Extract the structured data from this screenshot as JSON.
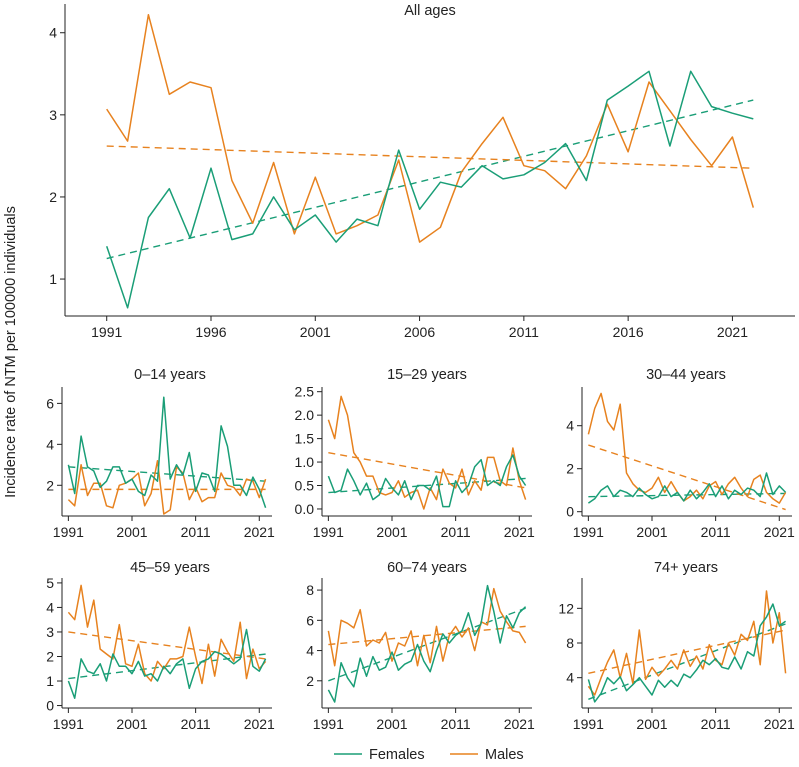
{
  "figure": {
    "ylabel": "Incidence rate of NTM per 100000 individuals",
    "legend": [
      {
        "name": "Females",
        "color": "#1a9e77"
      },
      {
        "name": "Males",
        "color": "#e7821f"
      }
    ],
    "colors": {
      "females": "#1a9e77",
      "males": "#e7821f",
      "axis": "#222222"
    }
  },
  "chart_data": [
    {
      "type": "line",
      "title": "All ages",
      "x": [
        1991,
        1992,
        1993,
        1994,
        1995,
        1996,
        1997,
        1998,
        1999,
        2000,
        2001,
        2002,
        2003,
        2004,
        2005,
        2006,
        2007,
        2008,
        2009,
        2010,
        2011,
        2012,
        2013,
        2014,
        2015,
        2016,
        2017,
        2018,
        2019,
        2020,
        2021,
        2022
      ],
      "series": [
        {
          "name": "Females",
          "values": [
            1.4,
            0.65,
            1.75,
            2.1,
            1.5,
            2.35,
            1.48,
            1.55,
            2.0,
            1.6,
            1.78,
            1.45,
            1.73,
            1.65,
            2.57,
            1.85,
            2.18,
            2.12,
            2.38,
            2.22,
            2.27,
            2.42,
            2.65,
            2.2,
            3.18,
            3.35,
            3.53,
            2.62,
            3.53,
            3.1,
            3.02,
            2.95
          ]
        },
        {
          "name": "Males",
          "values": [
            3.07,
            2.68,
            4.22,
            3.25,
            3.4,
            3.33,
            2.2,
            1.68,
            2.42,
            1.55,
            2.24,
            1.55,
            1.65,
            1.78,
            2.45,
            1.45,
            1.63,
            2.3,
            2.65,
            2.97,
            2.38,
            2.32,
            2.1,
            2.5,
            3.13,
            2.55,
            3.4,
            3.05,
            2.7,
            2.38,
            2.73,
            1.87
          ]
        }
      ],
      "trend": [
        {
          "name": "Females",
          "start": [
            1991,
            1.25
          ],
          "end": [
            2022,
            3.18
          ]
        },
        {
          "name": "Males",
          "start": [
            1991,
            2.62
          ],
          "end": [
            2022,
            2.35
          ]
        }
      ],
      "xticks": [
        1991,
        1996,
        2001,
        2006,
        2011,
        2016,
        2021
      ],
      "yticks": [
        1,
        2,
        3,
        4
      ],
      "xlim": [
        1989,
        2024
      ],
      "ylim": [
        0.55,
        4.35
      ]
    },
    {
      "type": "line",
      "title": "0–14 years",
      "x": [
        1991,
        1992,
        1993,
        1994,
        1995,
        1996,
        1997,
        1998,
        1999,
        2000,
        2001,
        2002,
        2003,
        2004,
        2005,
        2006,
        2007,
        2008,
        2009,
        2010,
        2011,
        2012,
        2013,
        2014,
        2015,
        2016,
        2017,
        2018,
        2019,
        2020,
        2021,
        2022
      ],
      "series": [
        {
          "name": "Females",
          "values": [
            3.0,
            1.6,
            4.4,
            2.9,
            2.7,
            1.9,
            2.2,
            2.9,
            2.9,
            2.1,
            2.3,
            1.7,
            1.5,
            2.5,
            2.2,
            6.3,
            2.3,
            3.0,
            2.5,
            3.6,
            1.7,
            2.6,
            2.5,
            1.7,
            4.9,
            3.9,
            2.0,
            2.0,
            1.5,
            2.4,
            1.8,
            0.9
          ]
        },
        {
          "name": "Males",
          "values": [
            1.3,
            1.0,
            3.0,
            1.5,
            2.1,
            2.1,
            1.0,
            0.9,
            2.0,
            2.1,
            2.3,
            2.6,
            1.0,
            1.6,
            3.2,
            0.6,
            0.8,
            2.9,
            2.6,
            1.3,
            1.9,
            1.2,
            1.4,
            1.4,
            2.6,
            2.0,
            1.9,
            1.5,
            2.3,
            2.2,
            1.4,
            2.3
          ]
        }
      ],
      "trend": [
        {
          "name": "Females",
          "start": [
            1991,
            2.9
          ],
          "end": [
            2022,
            2.2
          ]
        },
        {
          "name": "Males",
          "start": [
            1991,
            1.8
          ],
          "end": [
            2022,
            1.8
          ]
        }
      ],
      "xticks": [
        1991,
        2001,
        2011,
        2021
      ],
      "yticks": [
        2,
        4,
        6
      ],
      "xlim": [
        1990,
        2023
      ],
      "ylim": [
        0.5,
        6.8
      ]
    },
    {
      "type": "line",
      "title": "15–29 years",
      "x": [
        1991,
        1992,
        1993,
        1994,
        1995,
        1996,
        1997,
        1998,
        1999,
        2000,
        2001,
        2002,
        2003,
        2004,
        2005,
        2006,
        2007,
        2008,
        2009,
        2010,
        2011,
        2012,
        2013,
        2014,
        2015,
        2016,
        2017,
        2018,
        2019,
        2020,
        2021,
        2022
      ],
      "series": [
        {
          "name": "Females",
          "values": [
            0.7,
            0.35,
            0.4,
            0.85,
            0.6,
            0.3,
            0.55,
            0.2,
            0.3,
            0.65,
            0.45,
            0.3,
            0.6,
            0.2,
            0.5,
            0.5,
            0.4,
            0.7,
            0.05,
            0.05,
            0.6,
            0.35,
            0.5,
            0.9,
            1.05,
            0.5,
            0.6,
            0.5,
            0.9,
            1.15,
            0.7,
            0.5
          ]
        },
        {
          "name": "Males",
          "values": [
            1.9,
            1.5,
            2.4,
            2.0,
            1.2,
            1.0,
            0.7,
            0.7,
            0.35,
            0.3,
            0.35,
            0.6,
            0.25,
            0.35,
            0.4,
            0.0,
            0.45,
            0.2,
            0.85,
            0.55,
            0.45,
            0.85,
            0.3,
            0.6,
            0.4,
            1.1,
            1.1,
            0.6,
            0.5,
            1.3,
            0.6,
            0.2
          ]
        }
      ],
      "trend": [
        {
          "name": "Females",
          "start": [
            1991,
            0.35
          ],
          "end": [
            2022,
            0.65
          ]
        },
        {
          "name": "Males",
          "start": [
            1991,
            1.2
          ],
          "end": [
            2022,
            0.45
          ]
        }
      ],
      "xticks": [
        1991,
        2001,
        2011,
        2021
      ],
      "yticks": [
        0.0,
        0.5,
        1.0,
        1.5,
        2.0,
        2.5
      ],
      "xlim": [
        1990,
        2023
      ],
      "ylim": [
        -0.15,
        2.6
      ]
    },
    {
      "type": "line",
      "title": "30–44 years",
      "x": [
        1991,
        1992,
        1993,
        1994,
        1995,
        1996,
        1997,
        1998,
        1999,
        2000,
        2001,
        2002,
        2003,
        2004,
        2005,
        2006,
        2007,
        2008,
        2009,
        2010,
        2011,
        2012,
        2013,
        2014,
        2015,
        2016,
        2017,
        2018,
        2019,
        2020,
        2021,
        2022
      ],
      "series": [
        {
          "name": "Females",
          "values": [
            0.4,
            0.6,
            1.0,
            1.2,
            0.7,
            1.0,
            0.9,
            0.7,
            1.1,
            0.8,
            0.6,
            0.7,
            1.2,
            0.7,
            0.9,
            0.5,
            1.0,
            0.6,
            0.9,
            1.3,
            0.7,
            1.2,
            0.6,
            1.0,
            0.8,
            1.1,
            1.0,
            0.7,
            1.8,
            0.8,
            1.2,
            0.9
          ]
        },
        {
          "name": "Males",
          "values": [
            3.6,
            4.8,
            5.5,
            4.2,
            3.8,
            5.0,
            1.8,
            1.3,
            1.0,
            0.9,
            1.1,
            1.6,
            0.9,
            1.4,
            0.9,
            0.5,
            0.7,
            1.0,
            0.6,
            1.2,
            1.4,
            0.8,
            1.3,
            1.6,
            1.1,
            0.7,
            1.5,
            1.7,
            0.9,
            0.6,
            0.4,
            0.9
          ]
        }
      ],
      "trend": [
        {
          "name": "Females",
          "start": [
            1991,
            0.7
          ],
          "end": [
            2022,
            0.85
          ]
        },
        {
          "name": "Males",
          "start": [
            1991,
            3.1
          ],
          "end": [
            2022,
            0.1
          ]
        }
      ],
      "xticks": [
        1991,
        2001,
        2011,
        2021
      ],
      "yticks": [
        0,
        2,
        4
      ],
      "xlim": [
        1990,
        2023
      ],
      "ylim": [
        -0.2,
        5.8
      ]
    },
    {
      "type": "line",
      "title": "45–59 years",
      "x": [
        1991,
        1992,
        1993,
        1994,
        1995,
        1996,
        1997,
        1998,
        1999,
        2000,
        2001,
        2002,
        2003,
        2004,
        2005,
        2006,
        2007,
        2008,
        2009,
        2010,
        2011,
        2012,
        2013,
        2014,
        2015,
        2016,
        2017,
        2018,
        2019,
        2020,
        2021,
        2022
      ],
      "series": [
        {
          "name": "Females",
          "values": [
            1.0,
            0.3,
            1.9,
            1.4,
            1.3,
            1.7,
            1.0,
            2.1,
            1.6,
            1.6,
            1.3,
            1.8,
            1.2,
            1.3,
            1.0,
            1.6,
            1.3,
            1.7,
            1.9,
            0.7,
            1.5,
            1.8,
            1.9,
            2.2,
            2.1,
            1.9,
            1.7,
            1.9,
            3.1,
            1.6,
            1.4,
            1.9
          ]
        },
        {
          "name": "Males",
          "values": [
            3.8,
            3.5,
            4.9,
            3.2,
            4.3,
            2.3,
            2.1,
            1.9,
            3.3,
            1.7,
            1.6,
            2.5,
            1.3,
            1.0,
            1.8,
            1.5,
            1.9,
            1.9,
            2.0,
            3.2,
            2.0,
            0.9,
            2.5,
            1.2,
            2.7,
            2.2,
            1.8,
            3.4,
            1.1,
            2.3,
            1.5,
            1.8
          ]
        }
      ],
      "trend": [
        {
          "name": "Females",
          "start": [
            1991,
            1.1
          ],
          "end": [
            2022,
            2.1
          ]
        },
        {
          "name": "Males",
          "start": [
            1991,
            3.0
          ],
          "end": [
            2022,
            1.9
          ]
        }
      ],
      "xticks": [
        1991,
        2001,
        2011,
        2021
      ],
      "yticks": [
        0,
        1,
        2,
        3,
        4,
        5
      ],
      "xlim": [
        1990,
        2023
      ],
      "ylim": [
        -0.1,
        5.2
      ]
    },
    {
      "type": "line",
      "title": "60–74 years",
      "x": [
        1991,
        1992,
        1993,
        1994,
        1995,
        1996,
        1997,
        1998,
        1999,
        2000,
        2001,
        2002,
        2003,
        2004,
        2005,
        2006,
        2007,
        2008,
        2009,
        2010,
        2011,
        2012,
        2013,
        2014,
        2015,
        2016,
        2017,
        2018,
        2019,
        2020,
        2021,
        2022
      ],
      "series": [
        {
          "name": "Females",
          "values": [
            1.4,
            0.6,
            3.2,
            2.2,
            1.6,
            3.5,
            2.3,
            3.6,
            2.7,
            2.9,
            3.9,
            2.7,
            3.1,
            3.3,
            4.4,
            3.3,
            2.6,
            4.0,
            5.1,
            4.5,
            5.0,
            5.3,
            6.5,
            5.0,
            5.8,
            8.3,
            6.6,
            4.5,
            6.3,
            5.5,
            6.5,
            6.9
          ]
        },
        {
          "name": "Males",
          "values": [
            5.3,
            3.0,
            6.0,
            5.8,
            5.5,
            6.7,
            4.3,
            4.7,
            4.5,
            5.2,
            3.3,
            4.5,
            4.3,
            5.3,
            3.0,
            5.0,
            3.2,
            5.6,
            3.3,
            5.0,
            5.6,
            4.9,
            5.5,
            4.0,
            5.9,
            5.7,
            8.1,
            6.6,
            5.9,
            5.3,
            5.2,
            4.5
          ]
        }
      ],
      "trend": [
        {
          "name": "Females",
          "start": [
            1991,
            2.0
          ],
          "end": [
            2022,
            6.8
          ]
        },
        {
          "name": "Males",
          "start": [
            1991,
            4.4
          ],
          "end": [
            2022,
            5.6
          ]
        }
      ],
      "xticks": [
        1991,
        2001,
        2011,
        2021
      ],
      "yticks": [
        2,
        4,
        6,
        8
      ],
      "xlim": [
        1990,
        2023
      ],
      "ylim": [
        0.2,
        8.8
      ]
    },
    {
      "type": "line",
      "title": "74+ years",
      "x": [
        1991,
        1992,
        1993,
        1994,
        1995,
        1996,
        1997,
        1998,
        1999,
        2000,
        2001,
        2002,
        2003,
        2004,
        2005,
        2006,
        2007,
        2008,
        2009,
        2010,
        2011,
        2012,
        2013,
        2014,
        2015,
        2016,
        2017,
        2018,
        2019,
        2020,
        2021,
        2022
      ],
      "series": [
        {
          "name": "Females",
          "values": [
            3.8,
            1.2,
            2.2,
            4.0,
            3.3,
            4.1,
            2.5,
            3.2,
            4.0,
            3.0,
            2.0,
            3.7,
            2.9,
            3.7,
            3.0,
            4.4,
            4.0,
            4.9,
            6.0,
            5.5,
            6.2,
            5.2,
            5.0,
            6.4,
            5.0,
            7.0,
            6.5,
            10.0,
            11.0,
            12.5,
            10.0,
            10.5
          ]
        },
        {
          "name": "Males",
          "values": [
            3.0,
            2.0,
            4.0,
            5.8,
            7.2,
            4.0,
            6.8,
            3.3,
            9.5,
            3.8,
            5.2,
            4.2,
            5.0,
            6.0,
            5.0,
            7.2,
            5.3,
            6.5,
            5.0,
            7.8,
            6.0,
            5.5,
            8.0,
            6.6,
            9.0,
            8.3,
            10.5,
            5.5,
            14.0,
            8.0,
            11.5,
            4.5
          ]
        }
      ],
      "trend": [
        {
          "name": "Females",
          "start": [
            1991,
            1.5
          ],
          "end": [
            2022,
            10.2
          ]
        },
        {
          "name": "Males",
          "start": [
            1991,
            4.5
          ],
          "end": [
            2022,
            9.5
          ]
        }
      ],
      "xticks": [
        1991,
        2001,
        2011,
        2021
      ],
      "yticks": [
        4,
        8,
        12
      ],
      "xlim": [
        1990,
        2023
      ],
      "ylim": [
        0.5,
        15.5
      ]
    }
  ]
}
